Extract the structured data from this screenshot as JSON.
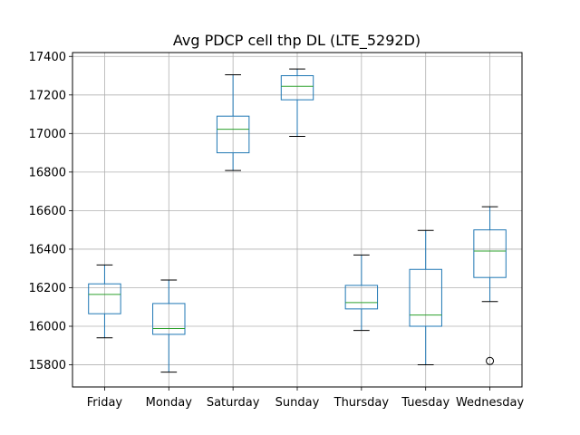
{
  "chart_data": {
    "type": "box",
    "title": "Avg PDCP cell thp DL (LTE_5292D)",
    "xlabel": "",
    "ylabel": "",
    "ylim": [
      15685,
      17420
    ],
    "yticks": [
      15800,
      16000,
      16200,
      16400,
      16600,
      16800,
      17000,
      17200,
      17400
    ],
    "grid": true,
    "legend": "none",
    "colors": {
      "box": "#1f77b4",
      "median": "#2ca02c",
      "whisker": "#000000",
      "grid": "#b0b0b0",
      "flier": "#000000"
    },
    "categories": [
      "Friday",
      "Monday",
      "Saturday",
      "Sunday",
      "Thursday",
      "Tuesday",
      "Wednesday"
    ],
    "boxes": [
      {
        "category": "Friday",
        "whislo": 15940,
        "q1": 16065,
        "med": 16165,
        "q3": 16220,
        "whishi": 16318,
        "fliers": []
      },
      {
        "category": "Monday",
        "whislo": 15762,
        "q1": 15958,
        "med": 15988,
        "q3": 16118,
        "whishi": 16240,
        "fliers": []
      },
      {
        "category": "Saturday",
        "whislo": 16808,
        "q1": 16900,
        "med": 17022,
        "q3": 17090,
        "whishi": 17305,
        "fliers": []
      },
      {
        "category": "Sunday",
        "whislo": 16985,
        "q1": 17175,
        "med": 17245,
        "q3": 17300,
        "whishi": 17335,
        "fliers": []
      },
      {
        "category": "Thursday",
        "whislo": 15978,
        "q1": 16090,
        "med": 16123,
        "q3": 16212,
        "whishi": 16370,
        "fliers": []
      },
      {
        "category": "Tuesday",
        "whislo": 15800,
        "q1": 16000,
        "med": 16058,
        "q3": 16295,
        "whishi": 16497,
        "fliers": []
      },
      {
        "category": "Wednesday",
        "whislo": 16128,
        "q1": 16253,
        "med": 16390,
        "q3": 16500,
        "whishi": 16620,
        "fliers": [
          15820
        ]
      }
    ]
  }
}
